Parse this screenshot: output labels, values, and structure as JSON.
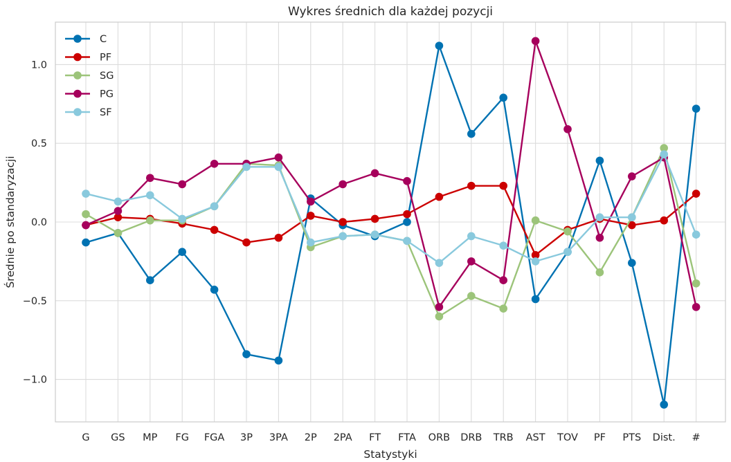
{
  "chart_data": {
    "type": "line",
    "title": "Wykres średnich dla każdej pozycji",
    "xlabel": "Statystyki",
    "ylabel": "Średnie po standaryzacji",
    "ylim": [
      -1.27,
      1.27
    ],
    "yticks": [
      -1.0,
      -0.5,
      0.0,
      0.5,
      1.0
    ],
    "ytick_labels": [
      "−1.0",
      "−0.5",
      "0.0",
      "0.5",
      "1.0"
    ],
    "grid": true,
    "legend_position": "top-left",
    "categories": [
      "G",
      "GS",
      "MP",
      "FG",
      "FGA",
      "3P",
      "3PA",
      "2P",
      "2PA",
      "FT",
      "FTA",
      "ORB",
      "DRB",
      "TRB",
      "AST",
      "TOV",
      "PF",
      "PTS",
      "Dist.",
      "#"
    ],
    "series": [
      {
        "name": "C",
        "color": "#0072B2",
        "values": [
          -0.13,
          -0.07,
          -0.37,
          -0.19,
          -0.43,
          -0.84,
          -0.88,
          0.15,
          -0.02,
          -0.09,
          0.0,
          1.12,
          0.56,
          0.79,
          -0.49,
          -0.19,
          0.39,
          -0.26,
          -1.16,
          0.72
        ]
      },
      {
        "name": "PF",
        "color": "#CC0000",
        "values": [
          -0.02,
          0.03,
          0.02,
          -0.01,
          -0.05,
          -0.13,
          -0.1,
          0.04,
          0.0,
          0.02,
          0.05,
          0.16,
          0.23,
          0.23,
          -0.21,
          -0.05,
          0.02,
          -0.02,
          0.01,
          0.18
        ]
      },
      {
        "name": "SG",
        "color": "#9CC47A",
        "values": [
          0.05,
          -0.07,
          0.01,
          0.01,
          0.1,
          0.37,
          0.36,
          -0.16,
          -0.09,
          -0.08,
          -0.12,
          -0.6,
          -0.47,
          -0.55,
          0.01,
          -0.06,
          -0.32,
          0.03,
          0.47,
          -0.39
        ]
      },
      {
        "name": "PG",
        "color": "#A6005C",
        "values": [
          -0.02,
          0.07,
          0.28,
          0.24,
          0.37,
          0.37,
          0.41,
          0.13,
          0.24,
          0.31,
          0.26,
          -0.54,
          -0.25,
          -0.37,
          1.15,
          0.59,
          -0.1,
          0.29,
          0.41,
          -0.54
        ]
      },
      {
        "name": "SF",
        "color": "#89C9DD",
        "values": [
          0.18,
          0.13,
          0.17,
          0.02,
          0.1,
          0.35,
          0.35,
          -0.13,
          -0.09,
          -0.08,
          -0.12,
          -0.26,
          -0.09,
          -0.15,
          -0.25,
          -0.19,
          0.03,
          0.03,
          0.43,
          -0.08
        ]
      }
    ]
  }
}
